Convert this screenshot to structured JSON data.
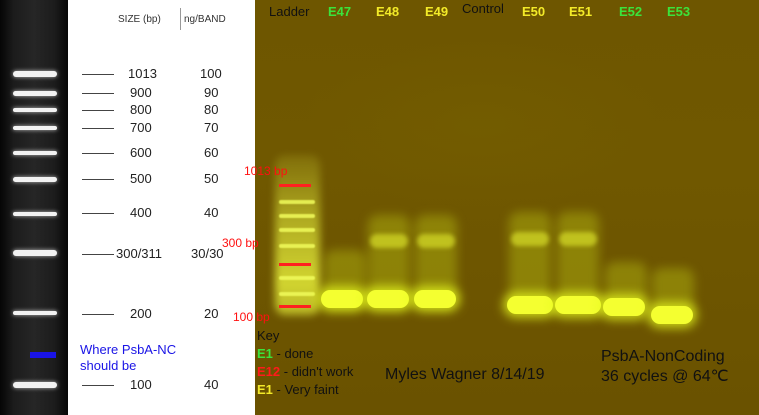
{
  "reference_ladder": {
    "header_size": "SIZE (bp)",
    "header_ng": "ng/BAND",
    "bands": [
      {
        "size": "1013",
        "ng": "100"
      },
      {
        "size": "900",
        "ng": "90"
      },
      {
        "size": "800",
        "ng": "80"
      },
      {
        "size": "700",
        "ng": "70"
      },
      {
        "size": "600",
        "ng": "60"
      },
      {
        "size": "500",
        "ng": "50"
      },
      {
        "size": "400",
        "ng": "40"
      },
      {
        "size": "300/311",
        "ng": "30/30"
      },
      {
        "size": "200",
        "ng": "20"
      },
      {
        "size": "100",
        "ng": "40"
      }
    ],
    "expected_label": "Where PsbA-NC should be",
    "expected_color": "#1a14e6"
  },
  "gel": {
    "lanes": [
      {
        "label": "Ladder",
        "status": "label"
      },
      {
        "label": "E47",
        "status": "done"
      },
      {
        "label": "E48",
        "status": "very-faint"
      },
      {
        "label": "E49",
        "status": "very-faint"
      },
      {
        "label": "Control",
        "status": "label"
      },
      {
        "label": "E50",
        "status": "very-faint"
      },
      {
        "label": "E51",
        "status": "very-faint"
      },
      {
        "label": "E52",
        "status": "done"
      },
      {
        "label": "E53",
        "status": "done"
      }
    ],
    "markers": [
      {
        "label": "1013 bp"
      },
      {
        "label": "300 bp"
      },
      {
        "label": "100 bp"
      }
    ],
    "key": {
      "title": "Key",
      "items": [
        {
          "code": "E1",
          "text": " - done",
          "color": "#3be33b"
        },
        {
          "code": "E12",
          "text": " - didn't work",
          "color": "#ff1a1a"
        },
        {
          "code": "E1",
          "text": " - Very faint",
          "color": "#f3ea28"
        }
      ]
    },
    "author": "Myles Wagner 8/14/19",
    "run_title": "PsbA-NonCoding",
    "run_conditions": "36 cycles @ 64℃"
  }
}
